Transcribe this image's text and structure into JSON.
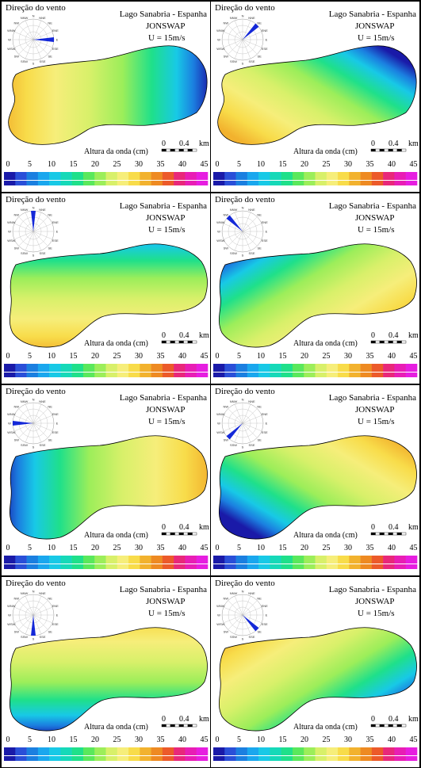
{
  "panel_common": {
    "wind_title": "Direção do vento",
    "lake_title": "Lago Sanabria - Espanha",
    "model": "JONSWAP",
    "wind_speed": "U = 15m/s",
    "colorbar_label": "Altura da onda (cm)",
    "scale_labels": [
      "0",
      "0.4",
      "km"
    ],
    "colorbar_ticks": [
      "0",
      "5",
      "10",
      "15",
      "20",
      "25",
      "30",
      "35",
      "40",
      "45"
    ],
    "compass_labels": [
      "N",
      "NNE",
      "NE",
      "ENE",
      "E",
      "ESE",
      "SE",
      "SSE",
      "S",
      "SSW",
      "SW",
      "WSW",
      "W",
      "WNW",
      "NW",
      "NNW"
    ]
  },
  "colorbar_colors": [
    "#1a1aa8",
    "#2a4fd8",
    "#1b7fe0",
    "#1aa7ee",
    "#18c9e6",
    "#16d9b8",
    "#1fe08a",
    "#5ae85c",
    "#9cee5a",
    "#d8f06a",
    "#f6ee7a",
    "#f8dc4a",
    "#f2b22e",
    "#ee8a22",
    "#ec5a2a",
    "#e8287a",
    "#e81eb4",
    "#e61ee0"
  ],
  "panels": [
    {
      "id": "p1",
      "wind_direction": "E"
    },
    {
      "id": "p2",
      "wind_direction": "NE"
    },
    {
      "id": "p3",
      "wind_direction": "N"
    },
    {
      "id": "p4",
      "wind_direction": "NW"
    },
    {
      "id": "p5",
      "wind_direction": "W"
    },
    {
      "id": "p6",
      "wind_direction": "SW"
    },
    {
      "id": "p7",
      "wind_direction": "S"
    },
    {
      "id": "p8",
      "wind_direction": "SE"
    }
  ]
}
